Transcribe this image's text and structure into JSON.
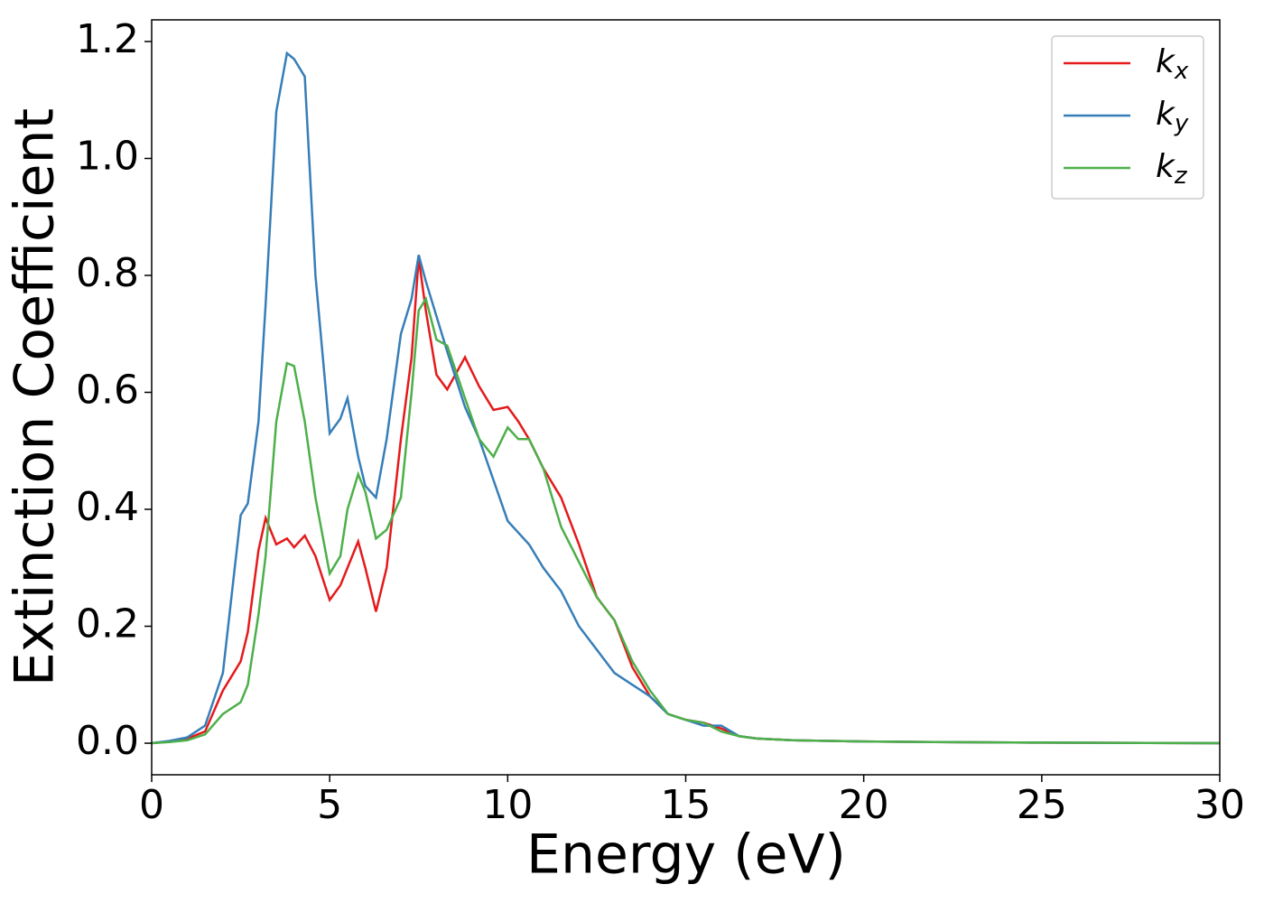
{
  "chart_data": {
    "type": "line",
    "xlabel": "Energy (eV)",
    "ylabel": "Extinction Coefficient",
    "x": [
      0,
      0.5,
      1,
      1.5,
      2,
      2.5,
      2.7,
      3,
      3.2,
      3.5,
      3.8,
      4,
      4.3,
      4.6,
      5,
      5.3,
      5.5,
      5.8,
      6,
      6.3,
      6.6,
      7,
      7.3,
      7.5,
      7.7,
      8,
      8.3,
      8.8,
      9.2,
      9.6,
      10,
      10.3,
      10.6,
      11,
      11.5,
      12,
      12.5,
      13,
      13.5,
      14,
      14.5,
      15,
      15.5,
      16,
      16.5,
      17,
      18,
      20,
      22,
      25,
      30
    ],
    "series": [
      {
        "name": "k_x",
        "color": "#e41a1c",
        "values": [
          0,
          0.003,
          0.008,
          0.02,
          0.09,
          0.14,
          0.19,
          0.33,
          0.385,
          0.34,
          0.35,
          0.335,
          0.355,
          0.32,
          0.245,
          0.27,
          0.3,
          0.345,
          0.3,
          0.225,
          0.3,
          0.52,
          0.66,
          0.83,
          0.74,
          0.63,
          0.605,
          0.66,
          0.61,
          0.57,
          0.575,
          0.55,
          0.52,
          0.47,
          0.42,
          0.34,
          0.25,
          0.21,
          0.13,
          0.08,
          0.05,
          0.04,
          0.035,
          0.025,
          0.012,
          0.008,
          0.005,
          0.003,
          0.002,
          0.001,
          0
        ]
      },
      {
        "name": "k_y",
        "color": "#377eb8",
        "values": [
          0,
          0.004,
          0.01,
          0.03,
          0.12,
          0.39,
          0.41,
          0.55,
          0.75,
          1.08,
          1.18,
          1.17,
          1.14,
          0.8,
          0.53,
          0.555,
          0.59,
          0.49,
          0.44,
          0.42,
          0.52,
          0.7,
          0.76,
          0.835,
          0.79,
          0.73,
          0.67,
          0.575,
          0.52,
          0.45,
          0.38,
          0.36,
          0.34,
          0.3,
          0.26,
          0.2,
          0.16,
          0.12,
          0.1,
          0.08,
          0.05,
          0.04,
          0.03,
          0.03,
          0.012,
          0.008,
          0.005,
          0.003,
          0.002,
          0.001,
          0
        ]
      },
      {
        "name": "k_z",
        "color": "#4daf4a",
        "values": [
          0,
          0.002,
          0.005,
          0.015,
          0.05,
          0.07,
          0.1,
          0.22,
          0.32,
          0.55,
          0.65,
          0.645,
          0.55,
          0.42,
          0.29,
          0.32,
          0.4,
          0.46,
          0.43,
          0.35,
          0.365,
          0.42,
          0.6,
          0.74,
          0.76,
          0.69,
          0.68,
          0.59,
          0.52,
          0.49,
          0.54,
          0.52,
          0.52,
          0.47,
          0.37,
          0.31,
          0.25,
          0.21,
          0.14,
          0.09,
          0.05,
          0.04,
          0.035,
          0.02,
          0.012,
          0.008,
          0.005,
          0.003,
          0.002,
          0.001,
          0
        ]
      }
    ],
    "xlim": [
      0,
      30
    ],
    "xticks": [
      0,
      5,
      10,
      15,
      20,
      25,
      30
    ],
    "ylim": [
      -0.054,
      1.237
    ],
    "yticks": [
      {
        "value": 0,
        "label": "0.0"
      },
      0.2,
      0.4,
      0.6,
      0.8,
      {
        "value": 1,
        "label": "1.0"
      },
      1.2
    ],
    "legend": "upper right"
  }
}
